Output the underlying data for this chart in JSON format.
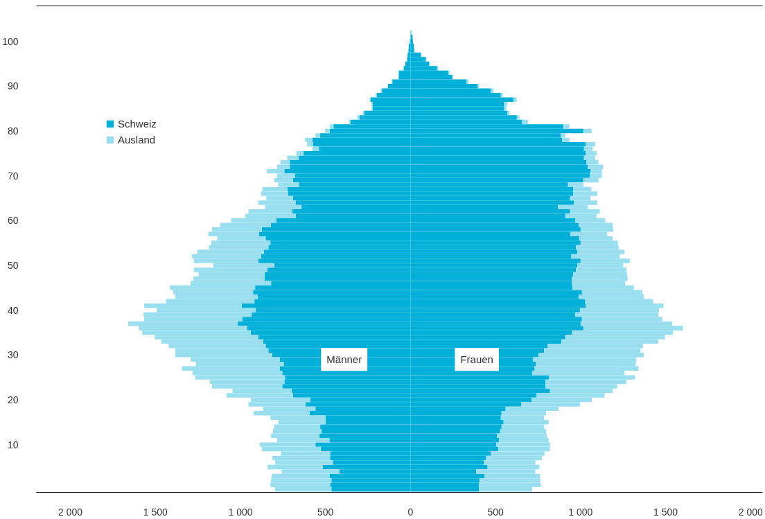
{
  "chart_data": {
    "type": "bar",
    "orientation": "horizontal",
    "stacked": true,
    "categories": [
      null,
      null,
      "100",
      null,
      null,
      null,
      null,
      null,
      null,
      null,
      null,
      null,
      "90",
      null,
      null,
      null,
      null,
      null,
      null,
      null,
      null,
      null,
      "80",
      null,
      null,
      null,
      null,
      null,
      null,
      null,
      null,
      null,
      "70",
      null,
      null,
      null,
      null,
      null,
      null,
      null,
      null,
      null,
      "60",
      null,
      null,
      null,
      null,
      null,
      null,
      null,
      null,
      null,
      "50",
      null,
      null,
      null,
      null,
      null,
      null,
      null,
      null,
      null,
      "40",
      null,
      null,
      null,
      null,
      null,
      null,
      null,
      null,
      null,
      "30",
      null,
      null,
      null,
      null,
      null,
      null,
      null,
      null,
      null,
      "20",
      null,
      null,
      null,
      null,
      null,
      null,
      null,
      null,
      null,
      "10",
      null,
      null,
      null,
      null,
      null,
      null,
      null,
      null,
      null,
      null
    ],
    "series": [
      {
        "name": "Schweiz",
        "color": "#00b0d8",
        "values": [
          0,
          null,
          -4,
          -10,
          -12,
          -17,
          -20,
          -31,
          -40,
          -69,
          -69,
          -107,
          -133,
          -168,
          -199,
          -234,
          -224,
          -224,
          -273,
          -299,
          -352,
          -453,
          -475,
          -531,
          -577,
          -574,
          -539,
          -629,
          -659,
          -710,
          -710,
          -742,
          -680,
          -691,
          -656,
          -723,
          -719,
          -691,
          -676,
          -641,
          -695,
          -676,
          -790,
          -822,
          -875,
          -891,
          -852,
          -824,
          -836,
          -863,
          -879,
          -895,
          -801,
          -841,
          -859,
          -859,
          -820,
          -914,
          -926,
          -898,
          -918,
          -992,
          -910,
          -934,
          -988,
          -1016,
          -961,
          -941,
          -895,
          -867,
          -852,
          -836,
          -813,
          -770,
          -746,
          -770,
          -754,
          -738,
          -742,
          -754,
          -699,
          -691,
          -590,
          -617,
          -559,
          -594,
          -500,
          -500,
          -531,
          -523,
          -535,
          -477,
          -559,
          -527,
          -473,
          -473,
          -457,
          -516,
          -418,
          -477,
          -465,
          -473,
          -465
        ]
      },
      {
        "name": "Ausland",
        "color": "#9adfef",
        "values": [
          0,
          0,
          0,
          0,
          0,
          null,
          -3,
          0,
          -3,
          -3,
          -5,
          -4,
          -2,
          -8,
          -7,
          -7,
          -6,
          -5,
          -8,
          -14,
          -10,
          -22,
          -28,
          -28,
          -43,
          -34,
          -38,
          -42,
          -66,
          -54,
          -75,
          -102,
          -105,
          -110,
          -121,
          -148,
          -160,
          -157,
          -219,
          -214,
          -258,
          -297,
          -265,
          -296,
          -293,
          -297,
          -285,
          -348,
          -348,
          -391,
          -406,
          -378,
          -359,
          -433,
          -387,
          -418,
          -473,
          -500,
          -469,
          -485,
          -520,
          -574,
          -582,
          -636,
          -578,
          -644,
          -637,
          -637,
          -609,
          -598,
          -570,
          -547,
          -570,
          -523,
          -516,
          -574,
          -527,
          -528,
          -438,
          -414,
          -348,
          -391,
          -348,
          -336,
          -308,
          -328,
          -324,
          -277,
          -270,
          -286,
          -285,
          -308,
          -328,
          -348,
          -289,
          -339,
          -339,
          -324,
          -340,
          -339,
          -355,
          -351,
          -332
        ]
      },
      {
        "color": "#00b0d8",
        "values": [
          2,
          12,
          14,
          20,
          22,
          62,
          90,
          109,
          156,
          223,
          246,
          328,
          395,
          473,
          531,
          605,
          551,
          551,
          570,
          625,
          656,
          898,
          1016,
          883,
          891,
          1031,
          1020,
          1031,
          1020,
          1035,
          1043,
          1059,
          1055,
          1016,
          926,
          957,
          957,
          938,
          961,
          867,
          938,
          910,
          969,
          988,
          1000,
          941,
          992,
          1000,
          973,
          980,
          945,
          1000,
          980,
          973,
          957,
          949,
          949,
          953,
          1008,
          988,
          1027,
          1031,
          996,
          969,
          1008,
          1000,
          1016,
          949,
          910,
          887,
          805,
          785,
          754,
          719,
          738,
          730,
          715,
          813,
          793,
          793,
          820,
          742,
          711,
          652,
          559,
          535,
          531,
          547,
          535,
          527,
          508,
          520,
          504,
          516,
          473,
          445,
          430,
          453,
          387,
          434,
          406,
          402,
          402
        ]
      },
      {
        "color": "#9adfef",
        "values": [
          6,
          0,
          0,
          0,
          0,
          0,
          4,
          8,
          8,
          7,
          4,
          12,
          7,
          15,
          12,
          20,
          19,
          12,
          12,
          16,
          35,
          36,
          50,
          27,
          43,
          55,
          50,
          63,
          66,
          70,
          90,
          66,
          70,
          89,
          90,
          106,
          141,
          121,
          137,
          176,
          175,
          184,
          176,
          200,
          191,
          215,
          196,
          219,
          250,
          278,
          285,
          289,
          270,
          297,
          316,
          328,
          313,
          360,
          355,
          383,
          399,
          457,
          465,
          488,
          472,
          539,
          586,
          594,
          586,
          570,
          562,
          567,
          617,
          609,
          586,
          610,
          543,
          507,
          477,
          422,
          368,
          399,
          355,
          344,
          312,
          262,
          254,
          265,
          250,
          270,
          293,
          292,
          316,
          304,
          316,
          328,
          304,
          305,
          347,
          328,
          356,
          364,
          313
        ]
      }
    ],
    "xlim": [
      -2200,
      2070
    ],
    "xticks": [
      {
        "value": -2000,
        "label": "2 000"
      },
      {
        "value": -1500,
        "label": "1 500"
      },
      {
        "value": -1000,
        "label": "1 000"
      },
      {
        "value": -500,
        "label": "500"
      },
      0,
      500,
      {
        "value": 1000,
        "label": "1 000"
      },
      {
        "value": 1500,
        "label": "1 500"
      },
      {
        "value": 2000,
        "label": "2 000"
      }
    ],
    "annotations": [
      "Männer",
      "Frauen"
    ],
    "legend": "top left",
    "grid": false
  }
}
